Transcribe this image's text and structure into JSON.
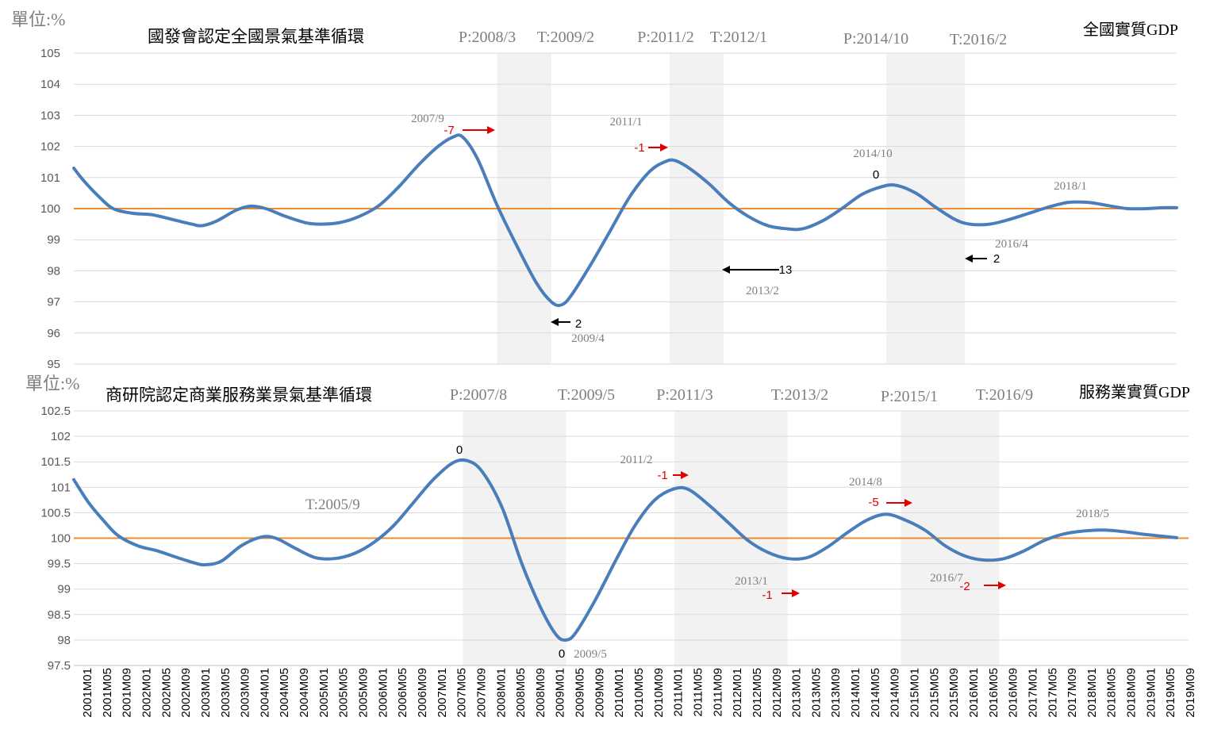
{
  "chart_data": [
    {
      "type": "line",
      "unit_label": "單位:%",
      "title": "國發會認定全國景氣基準循環",
      "series_label": "全國實質GDP",
      "ylim": [
        95,
        105
      ],
      "yticks": [
        "105",
        "104",
        "103",
        "102",
        "101",
        "100",
        "99",
        "98",
        "97",
        "96",
        "95"
      ],
      "baseline": 100,
      "colors": {
        "line": "#4a7ebb",
        "baseline": "#f28b2c",
        "shade": "#f2f2f2",
        "annotation_red": "#e00000",
        "annotation_black": "#000000",
        "text_gray": "#7f7f7f"
      },
      "shaded_periods": [
        {
          "start": "2008/3",
          "end": "2009/2"
        },
        {
          "start": "2011/2",
          "end": "2012/1"
        },
        {
          "start": "2014/10",
          "end": "2016/2"
        }
      ],
      "phase_labels": [
        "P:2008/3",
        "T:2009/2",
        "P:2011/2",
        "T:2012/1",
        "P:2014/10",
        "T:2016/2"
      ],
      "annotations": [
        {
          "date": "2007/9",
          "lead": "-7",
          "color": "red"
        },
        {
          "date": "2009/4",
          "lead": "2",
          "color": "black"
        },
        {
          "date": "2011/1",
          "lead": "-1",
          "color": "red"
        },
        {
          "date": "2013/2",
          "lead": "13",
          "color": "black"
        },
        {
          "date": "2014/10",
          "lead": "0",
          "color": "black"
        },
        {
          "date": "2016/4",
          "lead": "2",
          "color": "black"
        },
        {
          "date": "2018/1",
          "lead": "",
          "color": "none"
        }
      ],
      "series": [
        {
          "points": [
            [
              "2001-01",
              101.3
            ],
            [
              "2001-03",
              100.9
            ],
            [
              "2001-06",
              100.4
            ],
            [
              "2001-09",
              100.0
            ],
            [
              "2002-01",
              99.85
            ],
            [
              "2002-05",
              99.8
            ],
            [
              "2002-09",
              99.65
            ],
            [
              "2003-01",
              99.5
            ],
            [
              "2003-03",
              99.45
            ],
            [
              "2003-06",
              99.6
            ],
            [
              "2003-10",
              99.95
            ],
            [
              "2004-01",
              100.08
            ],
            [
              "2004-04",
              100.0
            ],
            [
              "2004-08",
              99.75
            ],
            [
              "2004-12",
              99.55
            ],
            [
              "2005-03",
              99.5
            ],
            [
              "2005-07",
              99.55
            ],
            [
              "2005-11",
              99.75
            ],
            [
              "2006-03",
              100.1
            ],
            [
              "2006-07",
              100.7
            ],
            [
              "2006-11",
              101.4
            ],
            [
              "2007-03",
              102.0
            ],
            [
              "2007-06",
              102.3
            ],
            [
              "2007-08",
              102.3
            ],
            [
              "2007-11",
              101.6
            ],
            [
              "2008-03",
              100.1
            ],
            [
              "2008-07",
              98.8
            ],
            [
              "2008-11",
              97.6
            ],
            [
              "2009-02",
              97.0
            ],
            [
              "2009-04",
              96.9
            ],
            [
              "2009-06",
              97.2
            ],
            [
              "2009-10",
              98.2
            ],
            [
              "2010-02",
              99.3
            ],
            [
              "2010-06",
              100.4
            ],
            [
              "2010-10",
              101.2
            ],
            [
              "2011-01",
              101.5
            ],
            [
              "2011-03",
              101.55
            ],
            [
              "2011-06",
              101.3
            ],
            [
              "2011-10",
              100.8
            ],
            [
              "2012-02",
              100.2
            ],
            [
              "2012-06",
              99.75
            ],
            [
              "2012-10",
              99.45
            ],
            [
              "2013-02",
              99.35
            ],
            [
              "2013-05",
              99.35
            ],
            [
              "2013-09",
              99.6
            ],
            [
              "2014-01",
              100.0
            ],
            [
              "2014-05",
              100.45
            ],
            [
              "2014-09",
              100.7
            ],
            [
              "2014-12",
              100.75
            ],
            [
              "2015-04",
              100.5
            ],
            [
              "2015-08",
              100.05
            ],
            [
              "2015-12",
              99.65
            ],
            [
              "2016-03",
              99.5
            ],
            [
              "2016-07",
              99.5
            ],
            [
              "2016-11",
              99.65
            ],
            [
              "2017-03",
              99.85
            ],
            [
              "2017-07",
              100.05
            ],
            [
              "2017-11",
              100.2
            ],
            [
              "2018-03",
              100.2
            ],
            [
              "2018-07",
              100.1
            ],
            [
              "2018-11",
              100.0
            ],
            [
              "2019-03",
              100.0
            ],
            [
              "2019-06",
              100.03
            ],
            [
              "2019-09",
              100.03
            ]
          ]
        }
      ]
    },
    {
      "type": "line",
      "unit_label": "單位:%",
      "title": "商研院認定商業服務業景氣基準循環",
      "series_label": "服務業實質GDP",
      "ylim": [
        97.5,
        102.5
      ],
      "yticks": [
        "102.5",
        "102",
        "101.5",
        "101",
        "100.5",
        "100",
        "99.5",
        "99",
        "98.5",
        "98",
        "97.5"
      ],
      "baseline": 100,
      "colors": {
        "line": "#4a7ebb",
        "baseline": "#f28b2c",
        "shade": "#f2f2f2",
        "annotation_red": "#e00000",
        "annotation_black": "#000000",
        "text_gray": "#7f7f7f"
      },
      "shaded_periods": [
        {
          "start": "2007/8",
          "end": "2009/5"
        },
        {
          "start": "2011/3",
          "end": "2013/2"
        },
        {
          "start": "2015/1",
          "end": "2016/9"
        }
      ],
      "phase_labels": [
        "P:2007/8",
        "T:2009/5",
        "P:2011/3",
        "T:2013/2",
        "P:2015/1",
        "T:2016/9"
      ],
      "extra_label": "T:2005/9",
      "annotations": [
        {
          "date": "",
          "lead": "0",
          "color": "black"
        },
        {
          "date": "2009/5",
          "lead": "0",
          "color": "black"
        },
        {
          "date": "2011/2",
          "lead": "-1",
          "color": "red"
        },
        {
          "date": "2013/1",
          "lead": "-1",
          "color": "red"
        },
        {
          "date": "2014/8",
          "lead": "-5",
          "color": "red"
        },
        {
          "date": "2016/7",
          "lead": "-2",
          "color": "red"
        },
        {
          "date": "2018/5",
          "lead": "",
          "color": "none"
        }
      ],
      "series": [
        {
          "points": [
            [
              "2001-01",
              101.15
            ],
            [
              "2001-04",
              100.7
            ],
            [
              "2001-07",
              100.35
            ],
            [
              "2001-10",
              100.05
            ],
            [
              "2002-02",
              99.85
            ],
            [
              "2002-06",
              99.75
            ],
            [
              "2002-10",
              99.62
            ],
            [
              "2003-02",
              99.5
            ],
            [
              "2003-04",
              99.48
            ],
            [
              "2003-07",
              99.55
            ],
            [
              "2003-11",
              99.85
            ],
            [
              "2004-03",
              100.02
            ],
            [
              "2004-06",
              100.0
            ],
            [
              "2004-10",
              99.8
            ],
            [
              "2005-02",
              99.62
            ],
            [
              "2005-06",
              99.6
            ],
            [
              "2005-10",
              99.7
            ],
            [
              "2006-02",
              99.92
            ],
            [
              "2006-06",
              100.25
            ],
            [
              "2006-10",
              100.7
            ],
            [
              "2007-02",
              101.15
            ],
            [
              "2007-06",
              101.48
            ],
            [
              "2007-09",
              101.52
            ],
            [
              "2007-12",
              101.3
            ],
            [
              "2008-04",
              100.6
            ],
            [
              "2008-08",
              99.5
            ],
            [
              "2008-12",
              98.6
            ],
            [
              "2009-03",
              98.1
            ],
            [
              "2009-05",
              98.0
            ],
            [
              "2009-07",
              98.15
            ],
            [
              "2009-11",
              98.8
            ],
            [
              "2010-03",
              99.55
            ],
            [
              "2010-07",
              100.25
            ],
            [
              "2010-11",
              100.75
            ],
            [
              "2011-03",
              100.97
            ],
            [
              "2011-06",
              100.95
            ],
            [
              "2011-10",
              100.65
            ],
            [
              "2012-02",
              100.3
            ],
            [
              "2012-06",
              99.95
            ],
            [
              "2012-10",
              99.72
            ],
            [
              "2013-02",
              99.6
            ],
            [
              "2013-06",
              99.62
            ],
            [
              "2013-10",
              99.82
            ],
            [
              "2014-02",
              100.1
            ],
            [
              "2014-06",
              100.35
            ],
            [
              "2014-10",
              100.47
            ],
            [
              "2015-02",
              100.35
            ],
            [
              "2015-06",
              100.15
            ],
            [
              "2015-10",
              99.85
            ],
            [
              "2016-02",
              99.65
            ],
            [
              "2016-06",
              99.57
            ],
            [
              "2016-10",
              99.6
            ],
            [
              "2017-02",
              99.75
            ],
            [
              "2017-06",
              99.95
            ],
            [
              "2017-10",
              100.08
            ],
            [
              "2018-02",
              100.14
            ],
            [
              "2018-06",
              100.16
            ],
            [
              "2018-10",
              100.13
            ],
            [
              "2019-02",
              100.08
            ],
            [
              "2019-06",
              100.04
            ],
            [
              "2019-09",
              100.01
            ]
          ]
        }
      ]
    }
  ],
  "x_axis": {
    "tick_labels": [
      "2001M01",
      "2001M05",
      "2001M09",
      "2002M01",
      "2002M05",
      "2002M09",
      "2003M01",
      "2003M05",
      "2003M09",
      "2004M01",
      "2004M05",
      "2004M09",
      "2005M01",
      "2005M05",
      "2005M09",
      "2006M01",
      "2006M05",
      "2006M09",
      "2007M01",
      "2007M05",
      "2007M09",
      "2008M01",
      "2008M05",
      "2008M09",
      "2009M01",
      "2009M05",
      "2009M09",
      "2010M01",
      "2010M05",
      "2010M09",
      "2011M01",
      "2011M05",
      "2011M09",
      "2012M01",
      "2012M05",
      "2012M09",
      "2013M01",
      "2013M05",
      "2013M09",
      "2014M01",
      "2014M05",
      "2014M09",
      "2015M01",
      "2015M05",
      "2015M09",
      "2016M01",
      "2016M05",
      "2016M09",
      "2017M01",
      "2017M05",
      "2017M09",
      "2018M01",
      "2018M05",
      "2018M09",
      "2019M01",
      "2019M05",
      "2019M09"
    ]
  }
}
